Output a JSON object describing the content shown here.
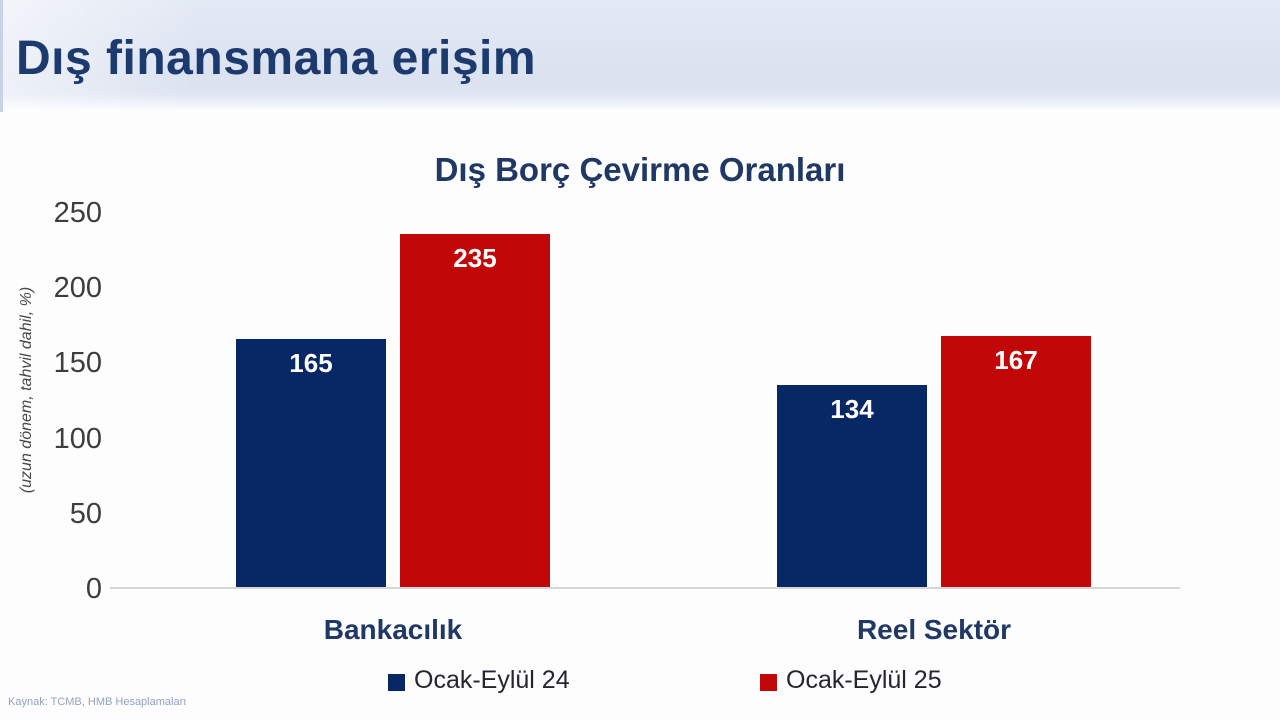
{
  "slide": {
    "header_title": "Dış finansmana erişim",
    "source_note": "Kaynak: TCMB, HMB Hesaplamaları"
  },
  "chart_data": {
    "type": "bar",
    "title": "Dış Borç Çevirme Oranları",
    "ylabel": "(uzun dönem, tahvil dahil, %)",
    "xlabel": "",
    "categories": [
      "Bankacılık",
      "Reel Sektör"
    ],
    "series": [
      {
        "name": "Ocak-Eylül 24",
        "color": "#082765",
        "values": [
          165,
          134
        ]
      },
      {
        "name": "Ocak-Eylül 25",
        "color": "#c10707",
        "values": [
          235,
          167
        ]
      }
    ],
    "ylim": [
      0,
      250
    ],
    "yticks": [
      0,
      50,
      100,
      150,
      200,
      250
    ],
    "grid": false,
    "legend_position": "bottom",
    "value_labels": true,
    "value_label_color": "#ffffff"
  },
  "colors": {
    "banner_bg": "#dde4f1",
    "title_navy": "#1f3864",
    "axis_text": "#3d3d3d",
    "legend_text": "#25252f",
    "baseline": "#d6d6d6",
    "source_text": "#94a1c1"
  }
}
